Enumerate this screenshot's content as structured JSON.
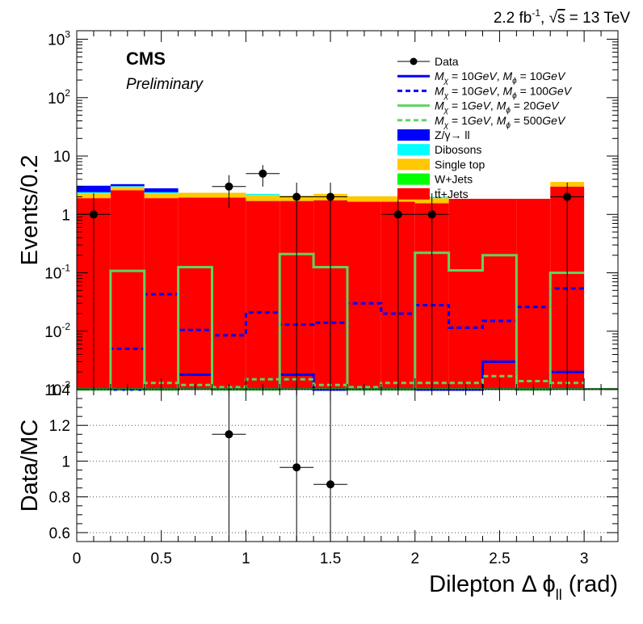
{
  "header": {
    "lumi_value": "2.2 fb",
    "lumi_exp": "-1",
    "energy_sep": ", ",
    "sqrt_symbol": "√",
    "energy_var": "s",
    "energy_rest": " = 13 TeV"
  },
  "labels": {
    "experiment": "CMS",
    "status": "Preliminary"
  },
  "chart_data": [
    {
      "type": "bar",
      "subtype": "stacked-histogram-log",
      "ylabel": "Events/0.2",
      "xlim": [
        0,
        3.2
      ],
      "ylim": [
        0.001,
        1400
      ],
      "log_y": true,
      "bin_width": 0.2,
      "bin_edges": [
        0,
        0.2,
        0.4,
        0.6,
        0.8,
        1.0,
        1.2,
        1.4,
        1.6,
        1.8,
        2.0,
        2.2,
        2.4,
        2.6,
        2.8,
        3.0
      ],
      "y_ticks": [
        {
          "value": 0.001,
          "base": "10",
          "exp": "-3"
        },
        {
          "value": 0.01,
          "base": "10",
          "exp": "-2"
        },
        {
          "value": 0.1,
          "base": "10",
          "exp": "-1"
        },
        {
          "value": 1,
          "base": "1",
          "exp": ""
        },
        {
          "value": 10,
          "base": "10",
          "exp": ""
        },
        {
          "value": 100,
          "base": "10",
          "exp": "2"
        },
        {
          "value": 1000,
          "base": "10",
          "exp": "3"
        }
      ],
      "stack": [
        {
          "key": "ttjets",
          "color": "#ff0000",
          "values": [
            1.9,
            2.6,
            1.9,
            1.95,
            1.95,
            1.7,
            1.7,
            1.75,
            1.65,
            1.65,
            1.55,
            1.85,
            1.85,
            1.85,
            3.0
          ]
        },
        {
          "key": "wjets",
          "color": "#00ff00",
          "values": [
            0,
            0,
            0,
            0,
            0,
            0,
            0,
            0,
            0,
            0,
            0,
            0,
            0,
            0,
            0
          ]
        },
        {
          "key": "singletop",
          "color": "#ffc800",
          "values": [
            0.4,
            0.35,
            0.4,
            0.4,
            0.4,
            0.45,
            0.4,
            0.5,
            0.4,
            0.4,
            0.35,
            0,
            0,
            0,
            0.6
          ]
        },
        {
          "key": "dibosons",
          "color": "#00ffff",
          "values": [
            0.1,
            0.1,
            0.1,
            0,
            0,
            0.1,
            0,
            0,
            0,
            0,
            0.1,
            0,
            0,
            0,
            0
          ]
        },
        {
          "key": "zgamma",
          "color": "#0000ff",
          "values": [
            0.7,
            0.25,
            0.4,
            0,
            0,
            0,
            0,
            0,
            0,
            0,
            0,
            0,
            0,
            0,
            0
          ]
        }
      ],
      "signals": [
        {
          "key": "sig1",
          "color": "#0000ff",
          "dash": false,
          "values": [
            0.001,
            0.001,
            0.001,
            0.0018,
            0.001,
            0.001,
            0.0018,
            0.001,
            0.001,
            0.001,
            0.001,
            0.001,
            0.003,
            0.001,
            0.002
          ]
        },
        {
          "key": "sig2",
          "color": "#0000ff",
          "dash": true,
          "values": [
            0.001,
            0.005,
            0.043,
            0.0105,
            0.0085,
            0.021,
            0.013,
            0.014,
            0.03,
            0.02,
            0.028,
            0.0115,
            0.015,
            0.026,
            0.054
          ]
        },
        {
          "key": "sig3",
          "color": "#5fd35f",
          "dash": false,
          "values": [
            0.001,
            0.108,
            0.001,
            0.125,
            0.001,
            0.001,
            0.21,
            0.125,
            0.001,
            0.001,
            0.22,
            0.11,
            0.2,
            0.001,
            0.1
          ]
        },
        {
          "key": "sig4",
          "color": "#5fd35f",
          "dash": true,
          "values": [
            0.001,
            0.001,
            0.0013,
            0.0012,
            0.0011,
            0.0015,
            0.0015,
            0.0012,
            0.0011,
            0.0013,
            0.0013,
            0.0013,
            0.0017,
            0.0014,
            0.0013
          ]
        }
      ],
      "data_points": [
        {
          "x": 0.1,
          "y": 1,
          "up": 2.3,
          "down": 0.001
        },
        {
          "x": 0.9,
          "y": 3,
          "up": 4.7,
          "down": 1.3
        },
        {
          "x": 1.1,
          "y": 5,
          "up": 7.0,
          "down": 3.0
        },
        {
          "x": 1.3,
          "y": 2,
          "up": 3.5,
          "down": 0.001
        },
        {
          "x": 1.5,
          "y": 2,
          "up": 3.5,
          "down": 0.001
        },
        {
          "x": 1.9,
          "y": 1,
          "up": 2.3,
          "down": 0.001
        },
        {
          "x": 2.1,
          "y": 1,
          "up": 2.3,
          "down": 0.001
        },
        {
          "x": 2.9,
          "y": 2,
          "up": 3.5,
          "down": 0.001
        }
      ],
      "legend": {
        "placement": "top-right",
        "entries": [
          {
            "key": "data",
            "style": "marker",
            "color": "#000000",
            "label": "Data"
          },
          {
            "key": "sig1",
            "style": "line",
            "color": "#0000ff",
            "dash": false,
            "mx": "10",
            "mphi": "10"
          },
          {
            "key": "sig2",
            "style": "line",
            "color": "#0000ff",
            "dash": true,
            "mx": "10",
            "mphi": "100"
          },
          {
            "key": "sig3",
            "style": "line",
            "color": "#5fd35f",
            "dash": false,
            "mx": "1",
            "mphi": "20"
          },
          {
            "key": "sig4",
            "style": "line",
            "color": "#5fd35f",
            "dash": true,
            "mx": "1",
            "mphi": "500"
          },
          {
            "key": "zgamma",
            "style": "box",
            "color": "#0000ff",
            "label": "Z/γ→ ll"
          },
          {
            "key": "dibosons",
            "style": "box",
            "color": "#00ffff",
            "label": "Dibosons"
          },
          {
            "key": "singletop",
            "style": "box",
            "color": "#ffc800",
            "label": "Single top"
          },
          {
            "key": "wjets",
            "style": "box",
            "color": "#00ff00",
            "label": "W+Jets"
          },
          {
            "key": "ttjets",
            "style": "box",
            "color": "#ff0000",
            "label": "tt̄+Jets"
          }
        ],
        "mass_symbol": "M",
        "chi": "χ",
        "phi": "ϕ",
        "unit": "GeV"
      }
    },
    {
      "type": "scatter",
      "subtype": "ratio",
      "ylabel": "Data/MC",
      "xlabel_main": "Dilepton Δ ϕ",
      "xlabel_sub": "ll",
      "xlabel_unit": " (rad)",
      "xlim": [
        0,
        3.2
      ],
      "ylim": [
        0.55,
        1.4
      ],
      "y_ticks": [
        "0.6",
        "0.8",
        "1",
        "1.2",
        "1.4"
      ],
      "x_ticks": [
        "0",
        "0.5",
        "1",
        "1.5",
        "2",
        "2.5",
        "3"
      ],
      "grid": "horizontal-dotted",
      "points": [
        {
          "x": 0.9,
          "y": 1.15
        },
        {
          "x": 1.3,
          "y": 0.965
        },
        {
          "x": 1.5,
          "y": 0.87
        }
      ]
    }
  ]
}
